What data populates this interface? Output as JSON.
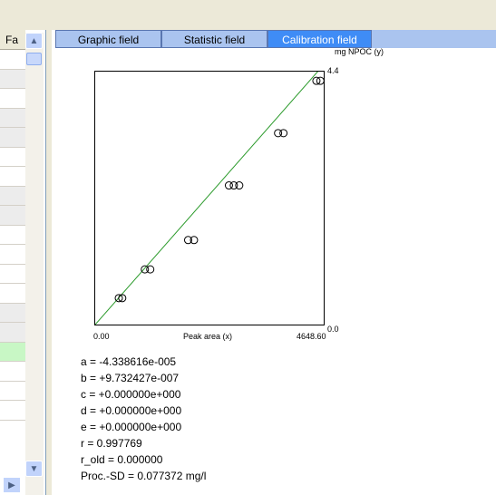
{
  "left_panel": {
    "header_label": "Fa",
    "rows": [
      "white",
      "gray",
      "white",
      "gray",
      "gray",
      "white",
      "white",
      "gray",
      "gray",
      "white",
      "white",
      "white",
      "white",
      "gray",
      "gray",
      "green",
      "white",
      "white",
      "white"
    ]
  },
  "tabs": [
    {
      "label": "Graphic field",
      "active": false
    },
    {
      "label": "Statistic field",
      "active": false
    },
    {
      "label": "Calibration field",
      "active": true
    }
  ],
  "chart_data": {
    "type": "scatter",
    "xlabel": "Peak area (x)",
    "ylabel": "mg NPOC (y)",
    "x_min_label": "0.00",
    "x_max_label": "4648.60",
    "y_min_label": "0.0",
    "y_max_label": "4.4",
    "xlim": [
      0,
      4648.6
    ],
    "ylim": [
      0,
      4.4
    ],
    "points": [
      {
        "x": 480,
        "y": 0.46
      },
      {
        "x": 550,
        "y": 0.46
      },
      {
        "x": 1010,
        "y": 0.96
      },
      {
        "x": 1120,
        "y": 0.96
      },
      {
        "x": 1890,
        "y": 1.47
      },
      {
        "x": 2010,
        "y": 1.47
      },
      {
        "x": 2720,
        "y": 2.42
      },
      {
        "x": 2820,
        "y": 2.42
      },
      {
        "x": 2930,
        "y": 2.42
      },
      {
        "x": 3720,
        "y": 3.33
      },
      {
        "x": 3830,
        "y": 3.33
      },
      {
        "x": 4500,
        "y": 4.24
      },
      {
        "x": 4580,
        "y": 4.24
      }
    ],
    "fit_line": [
      [
        0,
        0
      ],
      [
        4648.6,
        4.52
      ]
    ],
    "line_color": "#2a9a2a"
  },
  "params": [
    "a = -4.338616e-005",
    "b = +9.732427e-007",
    "c = +0.000000e+000",
    "d = +0.000000e+000",
    "e = +0.000000e+000",
    "r = 0.997769",
    "r_old = 0.000000",
    "Proc.-SD = 0.077372 mg/l"
  ]
}
